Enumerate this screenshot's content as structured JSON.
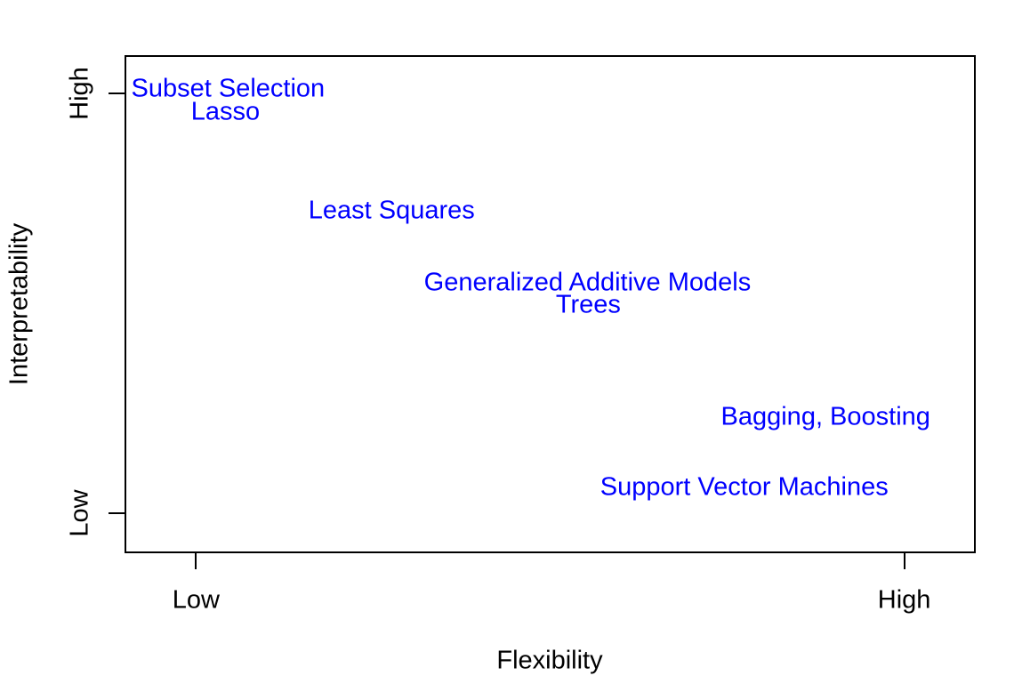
{
  "colors": {
    "label_blue": "#0000ff",
    "axis_black": "#000000",
    "background": "#ffffff"
  },
  "chart_data": {
    "type": "scatter",
    "title": "",
    "xlabel": "Flexibility",
    "ylabel": "Interpretability",
    "xlim": [
      0,
      1
    ],
    "ylim": [
      0,
      1
    ],
    "grid": false,
    "legend": null,
    "x_ticks": [
      {
        "label": "Low",
        "x": 0.084
      },
      {
        "label": "High",
        "x": 0.916
      }
    ],
    "y_ticks": [
      {
        "label": "Low",
        "y": 0.08
      },
      {
        "label": "High",
        "y": 0.923
      }
    ],
    "points": [
      {
        "label": "Subset Selection",
        "x": 0.12,
        "y": 0.936
      },
      {
        "label": "Lasso",
        "x": 0.117,
        "y": 0.889
      },
      {
        "label": "Least Squares",
        "x": 0.313,
        "y": 0.689
      },
      {
        "label": "Generalized Additive Models",
        "x": 0.544,
        "y": 0.543
      },
      {
        "label": "Trees",
        "x": 0.545,
        "y": 0.498
      },
      {
        "label": "Bagging, Boosting",
        "x": 0.825,
        "y": 0.271
      },
      {
        "label": "Support Vector Machines",
        "x": 0.729,
        "y": 0.13
      }
    ]
  }
}
